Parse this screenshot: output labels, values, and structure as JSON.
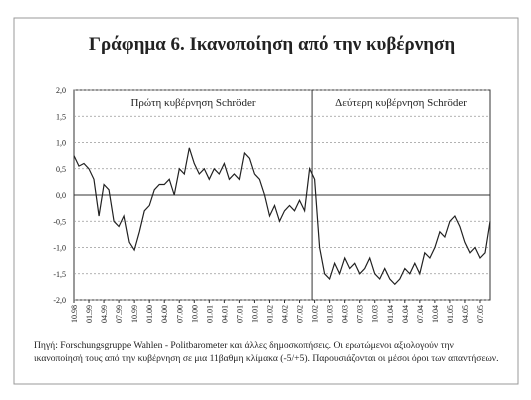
{
  "chart_data": {
    "type": "line",
    "title": "Γράφημα 6. Ικανοποίηση από την κυβέρνηση",
    "annotations": [
      "Πρώτη κυβέρνηση Schröder",
      "Δεύτερη κυβέρνηση Schröder"
    ],
    "source": "Πηγή: Forschungsgruppe Wahlen - Politbarometer και άλλες δημοσκοπήσεις. Οι ερωτώμενοι αξιολογούν την ικανοποίησή τους από την κυβέρνηση σε μια 11βαθμη κλίμακα (-5/+5). Παρουσιάζονται οι μέσοι όροι των απαντήσεων.",
    "categories": [
      "10.98",
      null,
      null,
      "01.99",
      null,
      null,
      "04.99",
      null,
      null,
      "07.99",
      null,
      null,
      "10.99",
      null,
      null,
      "01.00",
      null,
      null,
      "04.00",
      null,
      null,
      "07.00",
      null,
      null,
      "10.00",
      null,
      null,
      "01.01",
      null,
      null,
      "04.01",
      null,
      null,
      "07.01",
      null,
      null,
      "10.01",
      null,
      null,
      "01.02",
      null,
      null,
      "04.02",
      null,
      null,
      "07.02",
      null,
      null,
      "10.02",
      null,
      null,
      "01.03",
      null,
      null,
      "04.03",
      null,
      null,
      "07.03",
      null,
      null,
      "10.03",
      null,
      null,
      "01.04",
      null,
      null,
      "04.04",
      null,
      null,
      "07.04",
      null,
      null,
      "10.04",
      null,
      null,
      "01.05",
      null,
      null,
      "04.05",
      null,
      null,
      "07.05",
      null,
      null
    ],
    "values": [
      0.75,
      0.55,
      0.6,
      0.5,
      0.3,
      -0.4,
      0.2,
      0.1,
      -0.5,
      -0.6,
      -0.4,
      -0.9,
      -1.05,
      -0.7,
      -0.3,
      -0.2,
      0.1,
      0.2,
      0.2,
      0.3,
      0.0,
      0.5,
      0.4,
      0.9,
      0.6,
      0.4,
      0.5,
      0.3,
      0.5,
      0.4,
      0.6,
      0.3,
      0.4,
      0.3,
      0.8,
      0.7,
      0.4,
      0.3,
      0.0,
      -0.4,
      -0.2,
      -0.5,
      -0.3,
      -0.2,
      -0.3,
      -0.1,
      -0.3,
      0.5,
      0.3,
      -1.0,
      -1.5,
      -1.6,
      -1.3,
      -1.5,
      -1.2,
      -1.4,
      -1.3,
      -1.5,
      -1.4,
      -1.2,
      -1.5,
      -1.6,
      -1.4,
      -1.6,
      -1.7,
      -1.6,
      -1.4,
      -1.5,
      -1.3,
      -1.5,
      -1.1,
      -1.2,
      -1.0,
      -0.7,
      -0.8,
      -0.5,
      -0.4,
      -0.6,
      -0.9,
      -1.1,
      -1.0,
      -1.2,
      -1.1,
      -0.5
    ],
    "color": "#222222",
    "ylim": [
      -2,
      2
    ],
    "yticks": [
      {
        "value": 2,
        "label": "2,0"
      },
      {
        "value": 1.5,
        "label": "1,5"
      },
      {
        "value": 1,
        "label": "1,0"
      },
      {
        "value": 0.5,
        "label": "0,5"
      },
      {
        "value": 0,
        "label": "0,0"
      },
      {
        "value": -0.5,
        "label": "-0,5"
      },
      {
        "value": -1,
        "label": "-1,0"
      },
      {
        "value": -1.5,
        "label": "-1,5"
      },
      {
        "value": -2,
        "label": "-2,0"
      }
    ],
    "grid": true
  }
}
